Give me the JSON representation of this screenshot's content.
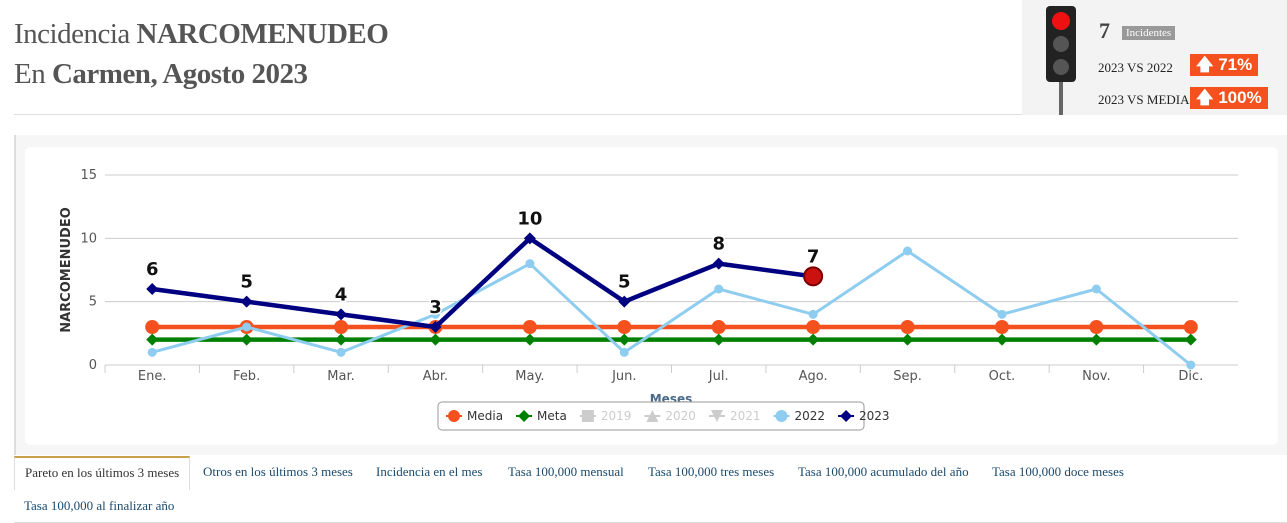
{
  "header": {
    "title_prefix": "Incidencia",
    "title_bold": "NARCOMENUDEO",
    "subtitle_prefix": "En",
    "subtitle_bold": "Carmen, Agosto 2023"
  },
  "indicator": {
    "count": 7,
    "count_label": "Incidentes",
    "comparisons": [
      {
        "label": "2023 VS 2022",
        "value": "71%"
      },
      {
        "label": "2023 VS MEDIA",
        "value": "100%"
      }
    ]
  },
  "chart_data": {
    "type": "line",
    "y_label": "NARCOMENUDEO",
    "x_label": "Meses",
    "categories": [
      "Ene.",
      "Feb.",
      "Mar.",
      "Abr.",
      "May.",
      "Jun.",
      "Jul.",
      "Ago.",
      "Sep.",
      "Oct.",
      "Nov.",
      "Dic."
    ],
    "ylim": [
      0,
      15
    ],
    "yticks": [
      0,
      5,
      10,
      15
    ],
    "grid": true,
    "series": [
      {
        "name": "Media",
        "color": "#f4511e",
        "marker": "circle",
        "visible": true,
        "values": [
          3,
          3,
          3,
          3,
          3,
          3,
          3,
          3,
          3,
          3,
          3,
          3
        ]
      },
      {
        "name": "Meta",
        "color": "#008000",
        "marker": "diamond",
        "visible": true,
        "values": [
          2,
          2,
          2,
          2,
          2,
          2,
          2,
          2,
          2,
          2,
          2,
          2
        ]
      },
      {
        "name": "2019",
        "color": "#cccccc",
        "marker": "square",
        "visible": false,
        "values": [
          null,
          null,
          null,
          null,
          null,
          null,
          null,
          null,
          null,
          null,
          null,
          null
        ]
      },
      {
        "name": "2020",
        "color": "#cccccc",
        "marker": "triangle",
        "visible": false,
        "values": [
          null,
          null,
          null,
          null,
          null,
          null,
          null,
          null,
          null,
          null,
          null,
          null
        ]
      },
      {
        "name": "2021",
        "color": "#cccccc",
        "marker": "triangle-down",
        "visible": false,
        "values": [
          null,
          null,
          null,
          null,
          null,
          null,
          null,
          null,
          null,
          null,
          null,
          null
        ]
      },
      {
        "name": "2022",
        "color": "#8ecdf0",
        "marker": "circle",
        "visible": true,
        "values": [
          1,
          3,
          1,
          4,
          8,
          1,
          6,
          4,
          9,
          4,
          6,
          0
        ]
      },
      {
        "name": "2023",
        "color": "#000080",
        "marker": "diamond",
        "visible": true,
        "data_labels": true,
        "values": [
          6,
          5,
          4,
          3,
          10,
          5,
          8,
          7,
          null,
          null,
          null,
          null
        ]
      }
    ]
  },
  "tabs": [
    "Pareto en los últimos 3 meses",
    "Otros en los últimos 3 meses",
    "Incidencia en el mes",
    "Tasa 100,000 mensual",
    "Tasa 100,000 tres meses",
    "Tasa 100,000 acumulado del año",
    "Tasa 100,000 doce meses",
    "Tasa 100,000 al finalizar año"
  ]
}
